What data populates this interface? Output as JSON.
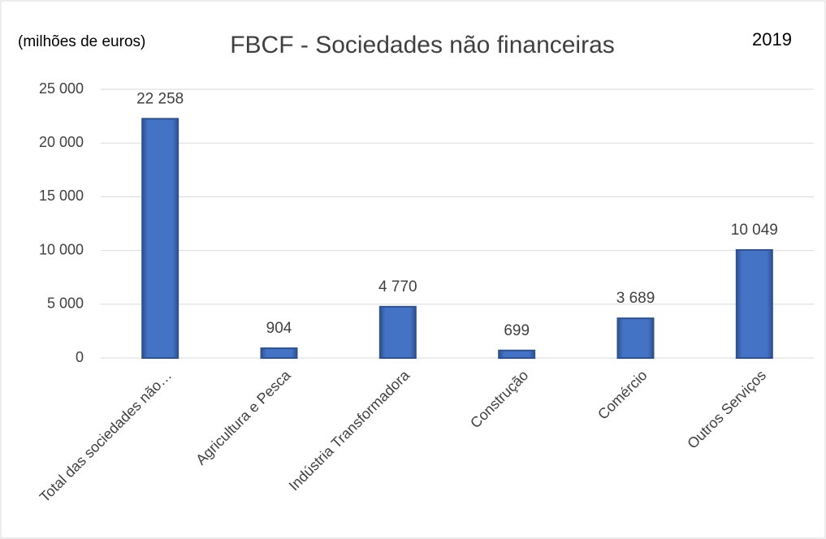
{
  "chart_data": {
    "type": "bar",
    "title": "FBCF - Sociedades não financeiras",
    "subtitle": "2019",
    "y_axis_label": "(milhões de euros)",
    "categories": [
      "Total das sociedades não…",
      "Agricultura e Pesca",
      "Indústria Transformadora",
      "Construção",
      "Comércio",
      "Outros Serviços"
    ],
    "values": [
      22258,
      904,
      4770,
      699,
      3689,
      10049
    ],
    "value_labels": [
      "22 258",
      "904",
      "4 770",
      "699",
      "3 689",
      "10 049"
    ],
    "color": "#4472c4",
    "ylim": [
      0,
      25000
    ],
    "yticks": [
      0,
      {
        "value": 5000,
        "label": "5 000"
      },
      {
        "value": 10000,
        "label": "10 000"
      },
      {
        "value": 15000,
        "label": "15 000"
      },
      {
        "value": 20000,
        "label": "20 000"
      },
      {
        "value": 25000,
        "label": "25 000"
      }
    ],
    "grid": true
  }
}
